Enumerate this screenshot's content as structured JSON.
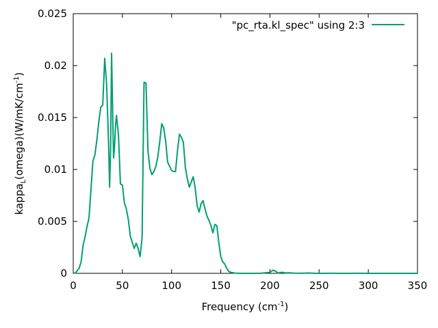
{
  "chart_data": {
    "type": "line",
    "title": "",
    "xlabel": "Frequency (cm",
    "xlabel_sup": "-1",
    "xlabel_tail": ")",
    "ylabel_main": "kappa",
    "ylabel_sub": "L",
    "ylabel_mid": "(omega)(W/mK/cm",
    "ylabel_sup": "-1",
    "ylabel_tail": ")",
    "xlim": [
      0,
      350
    ],
    "ylim": [
      0,
      0.025
    ],
    "x_ticks": [
      0,
      50,
      100,
      150,
      200,
      250,
      300,
      350
    ],
    "x_tick_labels": [
      "0",
      "50",
      "100",
      "150",
      "200",
      "250",
      "300",
      "350"
    ],
    "y_ticks": [
      0,
      0.005,
      0.01,
      0.015,
      0.02,
      0.025
    ],
    "y_tick_labels": [
      "0",
      "0.005",
      "0.01",
      "0.015",
      "0.02",
      "0.025"
    ],
    "legend_position": "top-right",
    "grid": false,
    "series": [
      {
        "name": "\"pc_rta.kl_spec\"  using 2:3",
        "color": "#009e73",
        "points": [
          [
            0,
            0
          ],
          [
            2,
            3e-05
          ],
          [
            4,
            0.00025
          ],
          [
            6,
            0.0005
          ],
          [
            8,
            0.0011
          ],
          [
            10,
            0.0027
          ],
          [
            12,
            0.0035
          ],
          [
            14,
            0.0045
          ],
          [
            16,
            0.0053
          ],
          [
            18,
            0.008
          ],
          [
            20,
            0.0108
          ],
          [
            22,
            0.0114
          ],
          [
            24,
            0.0128
          ],
          [
            26,
            0.0146
          ],
          [
            28,
            0.016
          ],
          [
            30,
            0.0162
          ],
          [
            32,
            0.0207
          ],
          [
            34,
            0.0181
          ],
          [
            36,
            0.0123
          ],
          [
            37,
            0.0083
          ],
          [
            38,
            0.0119
          ],
          [
            39,
            0.0212
          ],
          [
            40,
            0.016
          ],
          [
            41,
            0.0111
          ],
          [
            42,
            0.0122
          ],
          [
            43,
            0.0142
          ],
          [
            44,
            0.0152
          ],
          [
            46,
            0.0133
          ],
          [
            48,
            0.0086
          ],
          [
            50,
            0.0085
          ],
          [
            52,
            0.0068
          ],
          [
            54,
            0.0062
          ],
          [
            56,
            0.0052
          ],
          [
            58,
            0.0036
          ],
          [
            60,
            0.003
          ],
          [
            62,
            0.0024
          ],
          [
            64,
            0.0029
          ],
          [
            66,
            0.0024
          ],
          [
            68,
            0.0016
          ],
          [
            70,
            0.0034
          ],
          [
            72,
            0.0184
          ],
          [
            74,
            0.0183
          ],
          [
            76,
            0.0118
          ],
          [
            78,
            0.0101
          ],
          [
            80,
            0.0095
          ],
          [
            82,
            0.0098
          ],
          [
            84,
            0.0103
          ],
          [
            86,
            0.0112
          ],
          [
            88,
            0.0127
          ],
          [
            90,
            0.0144
          ],
          [
            92,
            0.014
          ],
          [
            94,
            0.0127
          ],
          [
            96,
            0.0107
          ],
          [
            98,
            0.0103
          ],
          [
            100,
            0.0099
          ],
          [
            102,
            0.0098
          ],
          [
            104,
            0.0098
          ],
          [
            106,
            0.0118
          ],
          [
            108,
            0.0134
          ],
          [
            110,
            0.0131
          ],
          [
            112,
            0.0126
          ],
          [
            114,
            0.0102
          ],
          [
            116,
            0.0091
          ],
          [
            118,
            0.0083
          ],
          [
            120,
            0.0088
          ],
          [
            122,
            0.0093
          ],
          [
            124,
            0.0082
          ],
          [
            126,
            0.0065
          ],
          [
            128,
            0.0059
          ],
          [
            130,
            0.0067
          ],
          [
            132,
            0.007
          ],
          [
            134,
            0.0062
          ],
          [
            136,
            0.0055
          ],
          [
            138,
            0.0051
          ],
          [
            140,
            0.0046
          ],
          [
            142,
            0.0039
          ],
          [
            144,
            0.0047
          ],
          [
            146,
            0.0046
          ],
          [
            148,
            0.003
          ],
          [
            150,
            0.0016
          ],
          [
            152,
            0.0011
          ],
          [
            154,
            0.0009
          ],
          [
            156,
            0.0005
          ],
          [
            158,
            0.0002
          ],
          [
            160,
            0.0001
          ],
          [
            165,
            2e-05
          ],
          [
            170,
            0
          ],
          [
            180,
            0
          ],
          [
            190,
            0
          ],
          [
            195,
            5e-05
          ],
          [
            200,
            0.0001
          ],
          [
            203,
            0.0003
          ],
          [
            206,
            0.0002
          ],
          [
            208,
            3e-05
          ],
          [
            212,
            0.0001
          ],
          [
            216,
            4e-05
          ],
          [
            220,
            5e-05
          ],
          [
            225,
            2e-05
          ],
          [
            230,
            1e-05
          ],
          [
            235,
            2e-05
          ],
          [
            240,
            3e-05
          ],
          [
            245,
            1e-05
          ],
          [
            250,
            0
          ],
          [
            260,
            1e-05
          ],
          [
            270,
            0
          ],
          [
            280,
            0
          ],
          [
            290,
            1e-05
          ],
          [
            300,
            0
          ],
          [
            310,
            0
          ],
          [
            320,
            0
          ],
          [
            330,
            0
          ],
          [
            340,
            0
          ],
          [
            350,
            0
          ]
        ]
      }
    ]
  }
}
